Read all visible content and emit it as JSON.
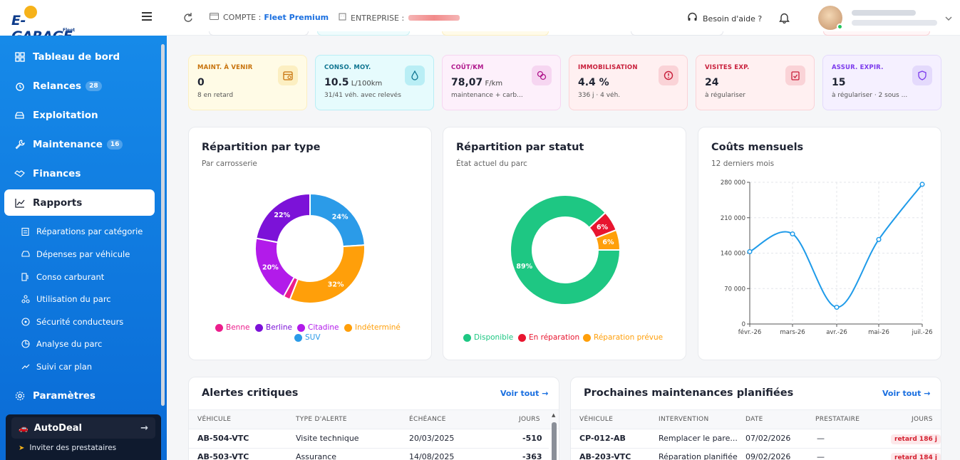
{
  "app": {
    "logo_text": "E-GARAGE",
    "logo_sub": "Fleet"
  },
  "sidebar": {
    "items": [
      {
        "label": "Tableau de bord"
      },
      {
        "label": "Relances",
        "badge": "28"
      },
      {
        "label": "Exploitation"
      },
      {
        "label": "Maintenance",
        "badge": "16"
      },
      {
        "label": "Finances"
      },
      {
        "label": "Rapports"
      },
      {
        "label": "Paramètres"
      }
    ],
    "subitems": [
      {
        "label": "Réparations par catégorie"
      },
      {
        "label": "Dépenses par véhicule"
      },
      {
        "label": "Conso carburant"
      },
      {
        "label": "Utilisation du parc"
      },
      {
        "label": "Sécurité conducteurs"
      },
      {
        "label": "Analyse du parc"
      },
      {
        "label": "Suivi car plan"
      }
    ],
    "autodeal": "AutoDeal",
    "invite": "Inviter des prestataires"
  },
  "topbar": {
    "compte_label": "COMPTE :",
    "compte_value": "Fleet Premium",
    "entreprise_label": "ENTREPRISE :",
    "help": "Besoin d'aide ?"
  },
  "kpis": [
    {
      "label": "MAINT. À VENIR",
      "value": "0",
      "unit": "",
      "sub": "8 en retard",
      "color": "#c7720b",
      "bg": "#fffbe6",
      "border": "#fcefc2"
    },
    {
      "label": "CONSO. MOY.",
      "value": "10.5",
      "unit": "L/100km",
      "sub": "31/41 véh. avec relevés",
      "color": "#0e7490",
      "bg": "#e6fbfd",
      "border": "#b9eef5"
    },
    {
      "label": "COÛT/KM",
      "value": "78,07",
      "unit": "F/km",
      "sub": "maintenance + carb...",
      "color": "#b0178c",
      "bg": "#fdf0fb",
      "border": "#f6d6f1"
    },
    {
      "label": "IMMOBILISATION",
      "value": "4.4 %",
      "unit": "",
      "sub": "336 j · 4 véh.",
      "color": "#c81e3a",
      "bg": "#fff0f1",
      "border": "#fad3d7"
    },
    {
      "label": "VISITES EXP.",
      "value": "24",
      "unit": "",
      "sub": "à régulariser",
      "color": "#c81e3a",
      "bg": "#fff0f1",
      "border": "#fad3d7"
    },
    {
      "label": "ASSUR. EXPIR.",
      "value": "15",
      "unit": "",
      "sub": "à régulariser · 2 sous ...",
      "color": "#7c3aed",
      "bg": "#f5f0ff",
      "border": "#e4dafc"
    }
  ],
  "panels": {
    "type": {
      "title": "Répartition par type",
      "subtitle": "Par carrosserie"
    },
    "statut": {
      "title": "Répartition par statut",
      "subtitle": "État actuel du parc"
    },
    "couts": {
      "title": "Coûts mensuels",
      "subtitle": "12 derniers mois"
    }
  },
  "chart_data": [
    {
      "type": "pie",
      "title": "Répartition par type",
      "subtitle": "Par carrosserie",
      "legend_position": "bottom",
      "categories": [
        "SUV",
        "Indéterminé",
        "Benne",
        "Citadine",
        "Berline"
      ],
      "values": [
        24,
        32,
        2,
        20,
        22
      ],
      "colors": [
        "#2b9be8",
        "#ff9f0a",
        "#ec1e8c",
        "#b21bea",
        "#7c12d8"
      ],
      "legend": [
        {
          "name": "Benne",
          "color": "#ec1e8c"
        },
        {
          "name": "Berline",
          "color": "#7c12d8"
        },
        {
          "name": "Citadine",
          "color": "#b21bea"
        },
        {
          "name": "Indéterminé",
          "color": "#ff9f0a"
        },
        {
          "name": "SUV",
          "color": "#2b9be8"
        }
      ]
    },
    {
      "type": "pie",
      "title": "Répartition par statut",
      "subtitle": "État actuel du parc",
      "legend_position": "bottom",
      "categories": [
        "Disponible",
        "En réparation",
        "Réparation prévue"
      ],
      "values": [
        89,
        6,
        6
      ],
      "colors": [
        "#1ec783",
        "#e8152f",
        "#ff9f0a"
      ],
      "legend": [
        {
          "name": "Disponible",
          "color": "#1ec783"
        },
        {
          "name": "En réparation",
          "color": "#e8152f"
        },
        {
          "name": "Réparation prévue",
          "color": "#ff9f0a"
        }
      ]
    },
    {
      "type": "line",
      "title": "Coûts mensuels",
      "subtitle": "12 derniers mois",
      "x": [
        "févr.-26",
        "mars-26",
        "avr.-26",
        "mai-26",
        "juil.-26"
      ],
      "y": [
        143000,
        178000,
        33000,
        167000,
        276000
      ],
      "ylim": [
        0,
        280000
      ],
      "yticks": [
        0,
        70000,
        140000,
        210000,
        280000
      ],
      "ytick_labels": [
        "0",
        "70 000",
        "140 000",
        "210 000",
        "280 000"
      ],
      "grid": true,
      "color": "#1f9be9"
    }
  ],
  "alertes": {
    "title": "Alertes critiques",
    "voir": "Voir tout",
    "headers": [
      "VÉHICULE",
      "TYPE D'ALERTE",
      "ÉCHÉANCE",
      "JOURS"
    ],
    "rows": [
      {
        "vehicule": "AB-504-VTC",
        "type": "Visite technique",
        "echeance": "20/03/2025",
        "jours": "-510"
      },
      {
        "vehicule": "AB-503-VTC",
        "type": "Assurance",
        "echeance": "14/08/2025",
        "jours": "-363"
      }
    ]
  },
  "maintenances": {
    "title": "Prochaines maintenances planifiées",
    "voir": "Voir tout",
    "headers": [
      "VÉHICULE",
      "INTERVENTION",
      "DATE",
      "PRESTATAIRE",
      "JOURS"
    ],
    "rows": [
      {
        "vehicule": "CP-012-AB",
        "intervention": "Remplacer le pare...",
        "date": "07/02/2026",
        "prestataire": "—",
        "jours": "retard 186 j"
      },
      {
        "vehicule": "AB-203-VTC",
        "intervention": "Réparation planifiée",
        "date": "09/02/2026",
        "prestataire": "—",
        "jours": "retard 184 j"
      }
    ]
  }
}
